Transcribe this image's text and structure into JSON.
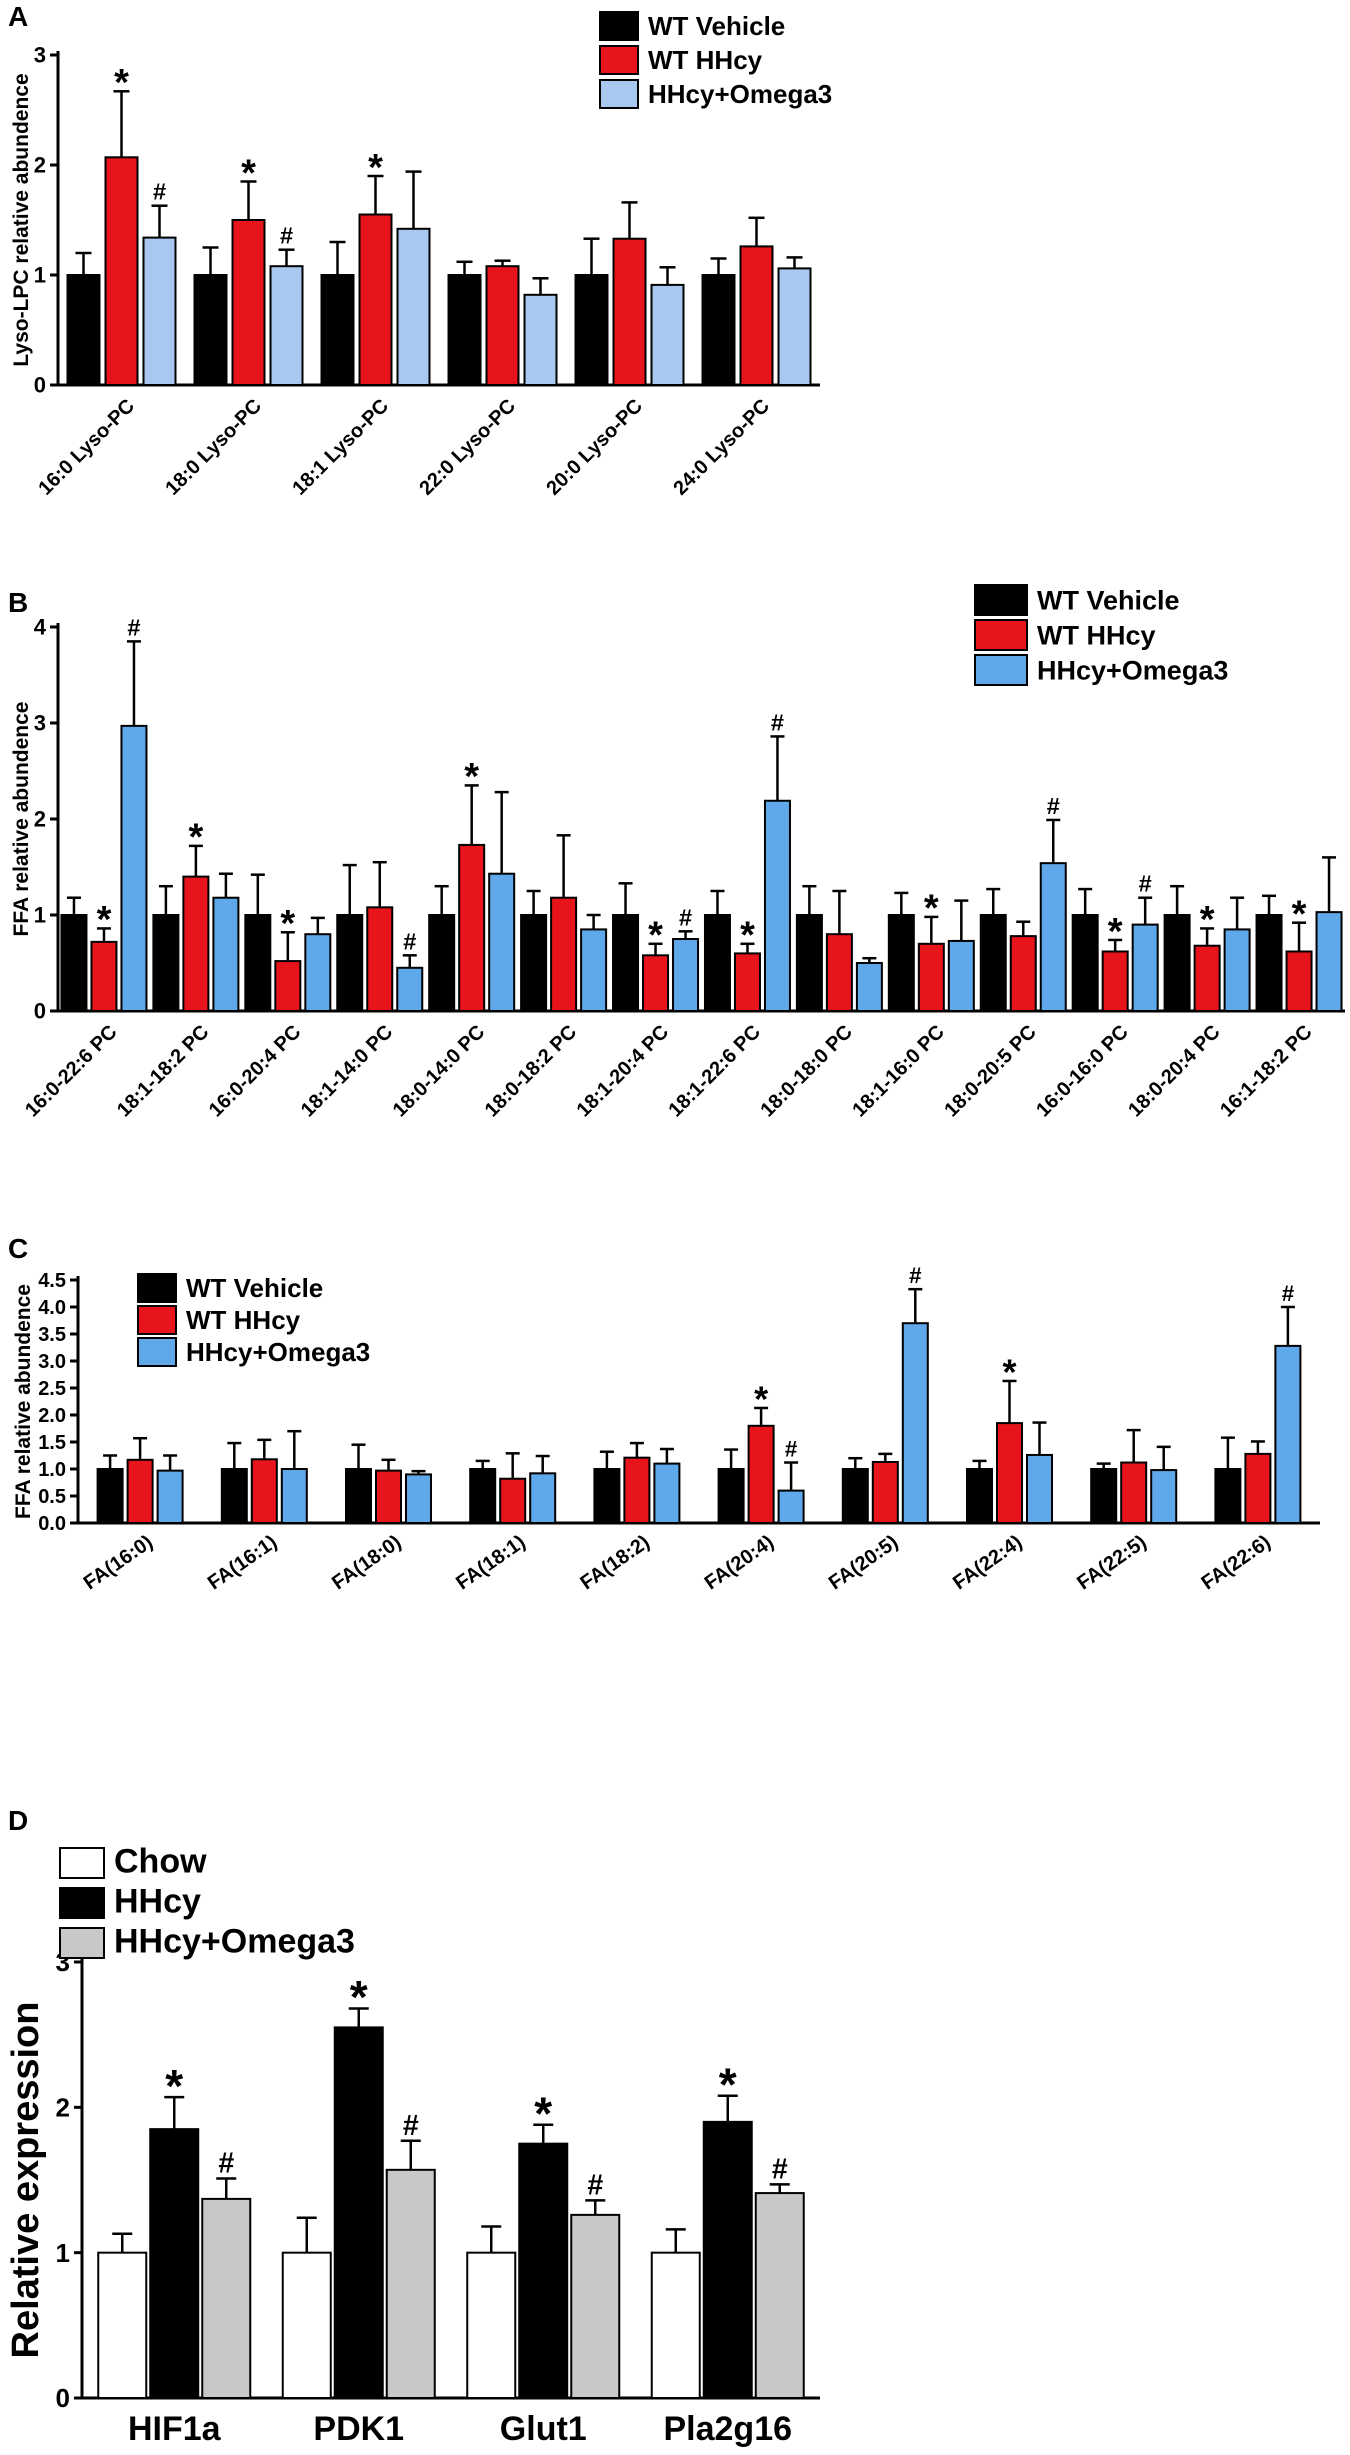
{
  "chart_data": [
    {
      "id": "A",
      "type": "bar",
      "panel_label": "A",
      "ylabel": "Lyso-LPC relative abundence",
      "xlabel": "",
      "ylim": [
        0,
        3
      ],
      "yticks": [
        "0",
        "1",
        "2",
        "3"
      ],
      "legend": "top-right",
      "categories": [
        "16:0 Lyso-PC",
        "18:0 Lyso-PC",
        "18:1 Lyso-PC",
        "22:0 Lyso-PC",
        "20:0 Lyso-PC",
        "24:0 Lyso-PC"
      ],
      "series": [
        {
          "name": "WT Vehicle",
          "color": "#000000",
          "values": [
            1.0,
            1.0,
            1.0,
            1.0,
            1.0,
            1.0
          ],
          "errors": [
            0.2,
            0.25,
            0.3,
            0.12,
            0.33,
            0.15
          ],
          "marks": [
            "",
            "",
            "",
            "",
            "",
            ""
          ]
        },
        {
          "name": "WT HHcy",
          "color": "#e8141c",
          "values": [
            2.07,
            1.5,
            1.55,
            1.08,
            1.33,
            1.26
          ],
          "errors": [
            0.6,
            0.35,
            0.35,
            0.05,
            0.33,
            0.26
          ],
          "marks": [
            "*",
            "*",
            "*",
            "",
            "",
            ""
          ]
        },
        {
          "name": "HHcy+Omega3",
          "color": "#a8c8f0",
          "values": [
            1.34,
            1.08,
            1.42,
            0.82,
            0.91,
            1.06
          ],
          "errors": [
            0.29,
            0.15,
            0.52,
            0.15,
            0.16,
            0.1
          ],
          "marks": [
            "#",
            "#",
            "",
            "",
            "",
            ""
          ]
        }
      ]
    },
    {
      "id": "B",
      "type": "bar",
      "panel_label": "B",
      "ylabel": "FFA relative abundence",
      "xlabel": "",
      "ylim": [
        0,
        4
      ],
      "yticks": [
        "0",
        "1",
        "2",
        "3",
        "4"
      ],
      "legend": "top-right",
      "categories": [
        "16:0-22:6 PC",
        "18:1-18:2 PC",
        "16:0-20:4 PC",
        "18:1-14:0 PC",
        "18:0-14:0 PC",
        "18:0-18:2 PC",
        "18:1-20:4 PC",
        "18:1-22:6 PC",
        "18:0-18:0 PC",
        "18:1-16:0 PC",
        "18:0-20:5 PC",
        "16:0-16:0 PC",
        "18:0-20:4 PC",
        "16:1-18:2 PC"
      ],
      "series": [
        {
          "name": "WT Vehicle",
          "color": "#000000",
          "values": [
            1.0,
            1.0,
            1.0,
            1.0,
            1.0,
            1.0,
            1.0,
            1.0,
            1.0,
            1.0,
            1.0,
            1.0,
            1.0,
            1.0
          ],
          "errors": [
            0.18,
            0.3,
            0.42,
            0.52,
            0.3,
            0.25,
            0.33,
            0.25,
            0.3,
            0.23,
            0.27,
            0.27,
            0.3,
            0.2
          ],
          "marks": [
            "",
            "",
            "",
            "",
            "",
            "",
            "",
            "",
            "",
            "",
            "",
            "",
            "",
            ""
          ]
        },
        {
          "name": "WT HHcy",
          "color": "#e8141c",
          "values": [
            0.72,
            1.4,
            0.52,
            1.08,
            1.73,
            1.18,
            0.58,
            0.6,
            0.8,
            0.7,
            0.78,
            0.62,
            0.68,
            0.62
          ],
          "errors": [
            0.14,
            0.32,
            0.3,
            0.47,
            0.62,
            0.65,
            0.12,
            0.1,
            0.45,
            0.28,
            0.15,
            0.12,
            0.18,
            0.3
          ],
          "marks": [
            "*",
            "*",
            "*",
            "",
            "*",
            "",
            "*",
            "*",
            "",
            "*",
            "",
            "*",
            "*",
            "*"
          ]
        },
        {
          "name": "HHcy+Omega3",
          "color": "#5fa8ea",
          "values": [
            2.97,
            1.18,
            0.8,
            0.45,
            1.43,
            0.85,
            0.75,
            2.19,
            0.5,
            0.73,
            1.54,
            0.9,
            0.85,
            1.03
          ],
          "errors": [
            0.88,
            0.25,
            0.17,
            0.13,
            0.85,
            0.15,
            0.08,
            0.67,
            0.05,
            0.42,
            0.45,
            0.28,
            0.33,
            0.57
          ],
          "marks": [
            "#",
            "",
            "",
            "#",
            "",
            "",
            "#",
            "#",
            "",
            "",
            "#",
            "#",
            "",
            ""
          ]
        }
      ]
    },
    {
      "id": "C",
      "type": "bar",
      "panel_label": "C",
      "ylabel": "FFA relative abundence",
      "xlabel": "",
      "ylim": [
        0,
        4.5
      ],
      "yticks": [
        "0.0",
        "0.5",
        "1.0",
        "1.5",
        "2.0",
        "2.5",
        "3.0",
        "3.5",
        "4.0",
        "4.5"
      ],
      "legend": "top-left",
      "categories": [
        "FA(16:0)",
        "FA(16:1)",
        "FA(18:0)",
        "FA(18:1)",
        "FA(18:2)",
        "FA(20:4)",
        "FA(20:5)",
        "FA(22:4)",
        "FA(22:5)",
        "FA(22:6)"
      ],
      "series": [
        {
          "name": "WT Vehicle",
          "color": "#000000",
          "values": [
            1.0,
            1.0,
            1.0,
            1.0,
            1.0,
            1.0,
            1.0,
            1.0,
            1.0,
            1.0
          ],
          "errors": [
            0.25,
            0.48,
            0.45,
            0.15,
            0.32,
            0.36,
            0.2,
            0.15,
            0.1,
            0.58
          ],
          "marks": [
            "",
            "",
            "",
            "",
            "",
            "",
            "",
            "",
            "",
            ""
          ]
        },
        {
          "name": "WT HHcy",
          "color": "#e8141c",
          "values": [
            1.17,
            1.18,
            0.97,
            0.82,
            1.21,
            1.8,
            1.13,
            1.85,
            1.12,
            1.28
          ],
          "errors": [
            0.4,
            0.36,
            0.2,
            0.47,
            0.27,
            0.33,
            0.15,
            0.78,
            0.6,
            0.23
          ],
          "marks": [
            "",
            "",
            "",
            "",
            "",
            "*",
            "",
            "*",
            "",
            ""
          ]
        },
        {
          "name": "HHcy+Omega3",
          "color": "#5fa8ea",
          "values": [
            0.97,
            1.0,
            0.9,
            0.92,
            1.1,
            0.6,
            3.7,
            1.26,
            0.98,
            3.28
          ],
          "errors": [
            0.28,
            0.7,
            0.06,
            0.32,
            0.27,
            0.52,
            0.63,
            0.6,
            0.43,
            0.72
          ],
          "marks": [
            "",
            "",
            "",
            "",
            "",
            "#",
            "#",
            "",
            "",
            "#"
          ]
        }
      ]
    },
    {
      "id": "D",
      "type": "bar",
      "panel_label": "D",
      "ylabel": "Relative expression",
      "xlabel": "",
      "ylim": [
        0,
        3
      ],
      "yticks": [
        "0",
        "1",
        "2",
        "3"
      ],
      "legend": "top-left",
      "categories": [
        "HIF1a",
        "PDK1",
        "Glut1",
        "Pla2g16"
      ],
      "series": [
        {
          "name": "Chow",
          "color": "#ffffff",
          "values": [
            1.0,
            1.0,
            1.0,
            1.0
          ],
          "errors": [
            0.13,
            0.24,
            0.18,
            0.16
          ],
          "marks": [
            "",
            "",
            "",
            ""
          ]
        },
        {
          "name": "HHcy",
          "color": "#000000",
          "values": [
            1.85,
            2.55,
            1.75,
            1.9
          ],
          "errors": [
            0.22,
            0.13,
            0.13,
            0.18
          ],
          "marks": [
            "*",
            "*",
            "*",
            "*"
          ]
        },
        {
          "name": "HHcy+Omega3",
          "color": "#c8c8c8",
          "values": [
            1.37,
            1.57,
            1.26,
            1.41
          ],
          "errors": [
            0.14,
            0.2,
            0.1,
            0.06
          ],
          "marks": [
            "#",
            "#",
            "#",
            "#"
          ]
        }
      ]
    }
  ]
}
